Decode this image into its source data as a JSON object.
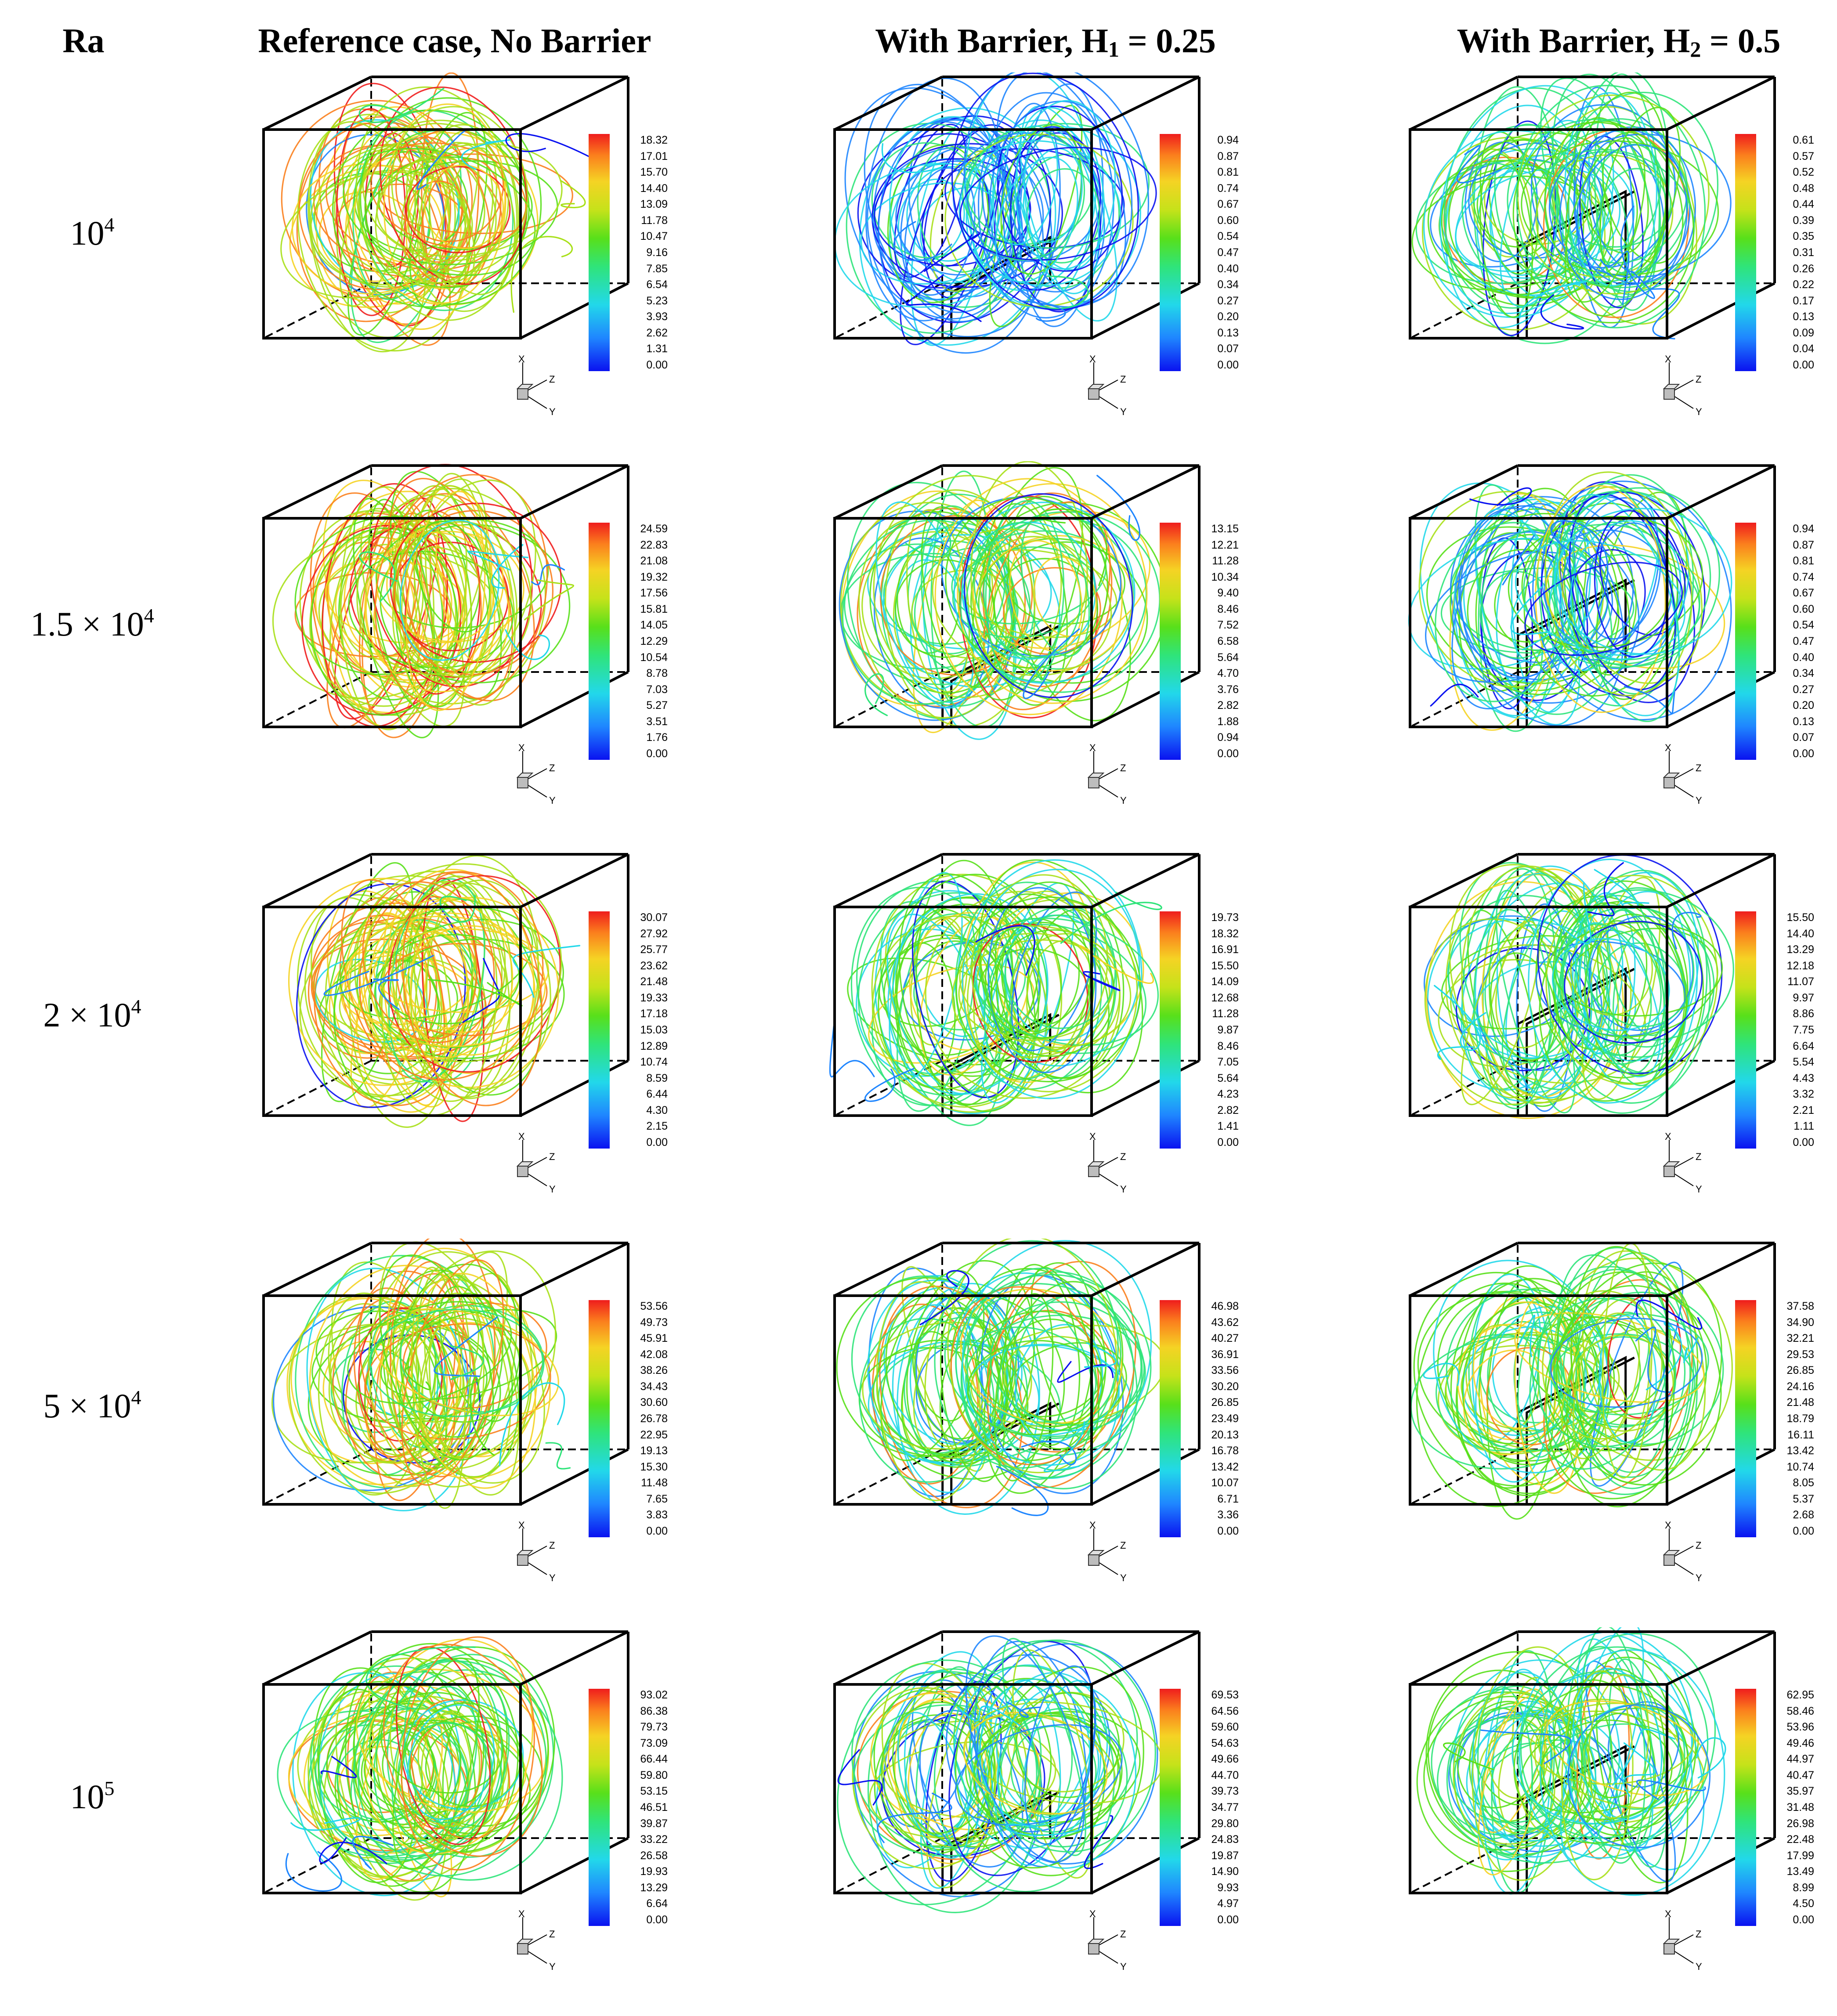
{
  "header": {
    "ra": "Ra",
    "col1": "Reference case, No Barrier",
    "col2_main": "With Barrier, H",
    "col2_sub": "1",
    "col2_tail": " = 0.25",
    "col3_main": "With Barrier, H",
    "col3_sub": "2",
    "col3_tail": " = 0.5"
  },
  "rows": [
    {
      "ra_base": "10",
      "ra_exp": "4",
      "legends": [
        [
          "18.32",
          "17.01",
          "15.70",
          "14.40",
          "13.09",
          "11.78",
          "10.47",
          "9.16",
          "7.85",
          "6.54",
          "5.23",
          "3.93",
          "2.62",
          "1.31",
          "0.00"
        ],
        [
          "0.94",
          "0.87",
          "0.81",
          "0.74",
          "0.67",
          "0.60",
          "0.54",
          "0.47",
          "0.40",
          "0.34",
          "0.27",
          "0.20",
          "0.13",
          "0.07",
          "0.00"
        ],
        [
          "0.61",
          "0.57",
          "0.52",
          "0.48",
          "0.44",
          "0.39",
          "0.35",
          "0.31",
          "0.26",
          "0.22",
          "0.17",
          "0.13",
          "0.09",
          "0.04",
          "0.00"
        ]
      ]
    },
    {
      "ra_base": "1.5 × 10",
      "ra_exp": "4",
      "legends": [
        [
          "24.59",
          "22.83",
          "21.08",
          "19.32",
          "17.56",
          "15.81",
          "14.05",
          "12.29",
          "10.54",
          "8.78",
          "7.03",
          "5.27",
          "3.51",
          "1.76",
          "0.00"
        ],
        [
          "13.15",
          "12.21",
          "11.28",
          "10.34",
          "9.40",
          "8.46",
          "7.52",
          "6.58",
          "5.64",
          "4.70",
          "3.76",
          "2.82",
          "1.88",
          "0.94",
          "0.00"
        ],
        [
          "0.94",
          "0.87",
          "0.81",
          "0.74",
          "0.67",
          "0.60",
          "0.54",
          "0.47",
          "0.40",
          "0.34",
          "0.27",
          "0.20",
          "0.13",
          "0.07",
          "0.00"
        ]
      ]
    },
    {
      "ra_base": "2 × 10",
      "ra_exp": "4",
      "legends": [
        [
          "30.07",
          "27.92",
          "25.77",
          "23.62",
          "21.48",
          "19.33",
          "17.18",
          "15.03",
          "12.89",
          "10.74",
          "8.59",
          "6.44",
          "4.30",
          "2.15",
          "0.00"
        ],
        [
          "19.73",
          "18.32",
          "16.91",
          "15.50",
          "14.09",
          "12.68",
          "11.28",
          "9.87",
          "8.46",
          "7.05",
          "5.64",
          "4.23",
          "2.82",
          "1.41",
          "0.00"
        ],
        [
          "15.50",
          "14.40",
          "13.29",
          "12.18",
          "11.07",
          "9.97",
          "8.86",
          "7.75",
          "6.64",
          "5.54",
          "4.43",
          "3.32",
          "2.21",
          "1.11",
          "0.00"
        ]
      ]
    },
    {
      "ra_base": "5 × 10",
      "ra_exp": "4",
      "legends": [
        [
          "53.56",
          "49.73",
          "45.91",
          "42.08",
          "38.26",
          "34.43",
          "30.60",
          "26.78",
          "22.95",
          "19.13",
          "15.30",
          "11.48",
          "7.65",
          "3.83",
          "0.00"
        ],
        [
          "46.98",
          "43.62",
          "40.27",
          "36.91",
          "33.56",
          "30.20",
          "26.85",
          "23.49",
          "20.13",
          "16.78",
          "13.42",
          "10.07",
          "6.71",
          "3.36",
          "0.00"
        ],
        [
          "37.58",
          "34.90",
          "32.21",
          "29.53",
          "26.85",
          "24.16",
          "21.48",
          "18.79",
          "16.11",
          "13.42",
          "10.74",
          "8.05",
          "5.37",
          "2.68",
          "0.00"
        ]
      ]
    },
    {
      "ra_base": "10",
      "ra_exp": "5",
      "legends": [
        [
          "93.02",
          "86.38",
          "79.73",
          "73.09",
          "66.44",
          "59.80",
          "53.15",
          "46.51",
          "39.87",
          "33.22",
          "26.58",
          "19.93",
          "13.29",
          "6.64",
          "0.00"
        ],
        [
          "69.53",
          "64.56",
          "59.60",
          "54.63",
          "49.66",
          "44.70",
          "39.73",
          "34.77",
          "29.80",
          "24.83",
          "19.87",
          "14.90",
          "9.93",
          "4.97",
          "0.00"
        ],
        [
          "62.95",
          "58.46",
          "53.96",
          "49.46",
          "44.97",
          "40.47",
          "35.97",
          "31.48",
          "26.98",
          "22.48",
          "17.99",
          "13.49",
          "8.99",
          "4.50",
          "0.00"
        ]
      ]
    }
  ],
  "axis_triad": {
    "x": "X",
    "y": "Y",
    "z": "Z"
  },
  "colors": {
    "high": "#ef1d1d",
    "upper": "#f5d324",
    "mid": "#58e01a",
    "lower": "#22d8ea",
    "low": "#1f86ff",
    "min": "#0a12f0"
  }
}
